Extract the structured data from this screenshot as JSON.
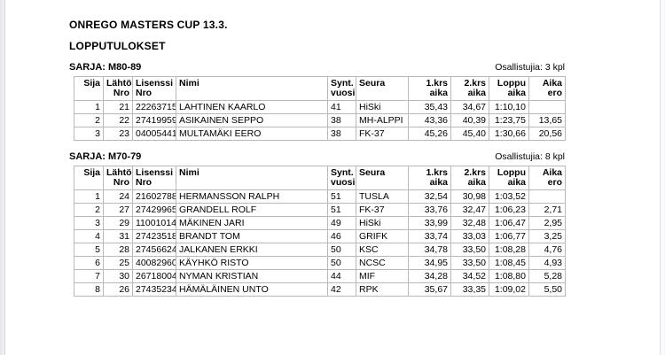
{
  "document": {
    "title": "ONREGO MASTERS CUP 13.3.",
    "subtitle": "LOPPUTULOKSET"
  },
  "columns": [
    {
      "id": "sija",
      "line1": "Sija",
      "line2": "",
      "align": "r"
    },
    {
      "id": "lahto-nro",
      "line1": "Lähtö",
      "line2": "Nro",
      "align": "r"
    },
    {
      "id": "lisenssi-nro",
      "line1": "Lisenssi",
      "line2": "Nro",
      "align": "l"
    },
    {
      "id": "nimi",
      "line1": "Nimi",
      "line2": "",
      "align": "l"
    },
    {
      "id": "synt-vuosi",
      "line1": "Synt.",
      "line2": "vuosi",
      "align": "l"
    },
    {
      "id": "seura",
      "line1": "Seura",
      "line2": "",
      "align": "l"
    },
    {
      "id": "1krs-aika",
      "line1": "1.krs",
      "line2": "aika",
      "align": "r"
    },
    {
      "id": "2krs-aika",
      "line1": "2.krs",
      "line2": "aika",
      "align": "r"
    },
    {
      "id": "loppu-aika",
      "line1": "Loppu",
      "line2": "aika",
      "align": "r"
    },
    {
      "id": "aika-ero",
      "line1": "Aika",
      "line2": "ero",
      "align": "r"
    }
  ],
  "sections": [
    {
      "heading": "SARJA: M80-89",
      "participants": "Osallistujia: 3 kpl",
      "rows": [
        [
          "1",
          "21",
          "22263715",
          "LAHTINEN KAARLO",
          "41",
          "HiSki",
          "35,43",
          "34,67",
          "1:10,10",
          ""
        ],
        [
          "2",
          "22",
          "27419959",
          "ASIKAINEN SEPPO",
          "38",
          "MH-ALPPI",
          "43,36",
          "40,39",
          "1:23,75",
          "13,65"
        ],
        [
          "3",
          "23",
          "04005441",
          "MULTAMÄKI EERO",
          "38",
          "FK-37",
          "45,26",
          "45,40",
          "1:30,66",
          "20,56"
        ]
      ]
    },
    {
      "heading": "SARJA: M70-79",
      "participants": "Osallistujia: 8 kpl",
      "rows": [
        [
          "1",
          "24",
          "21602788",
          "HERMANSSON RALPH",
          "51",
          "TUSLA",
          "32,54",
          "30,98",
          "1:03,52",
          ""
        ],
        [
          "2",
          "27",
          "27429965",
          "GRANDELL ROLF",
          "51",
          "FK-37",
          "33,76",
          "32,47",
          "1:06,23",
          "2,71"
        ],
        [
          "3",
          "29",
          "11001014",
          "MÄKINEN JARI",
          "49",
          "HiSki",
          "33,99",
          "32,48",
          "1:06,47",
          "2,95"
        ],
        [
          "4",
          "31",
          "27423518",
          "BRANDT TOM",
          "46",
          "GRIFK",
          "33,74",
          "33,03",
          "1:06,77",
          "3,25"
        ],
        [
          "5",
          "28",
          "27456624",
          "JALKANEN ERKKI",
          "50",
          "KSC",
          "34,78",
          "33,50",
          "1:08,28",
          "4,76"
        ],
        [
          "6",
          "25",
          "40082960",
          "KÄYHKÖ RISTO",
          "50",
          "NCSC",
          "34,95",
          "33,50",
          "1:08,45",
          "4,93"
        ],
        [
          "7",
          "30",
          "26718004",
          "NYMAN KRISTIAN",
          "44",
          "MIF",
          "34,28",
          "34,52",
          "1:08,80",
          "5,28"
        ],
        [
          "8",
          "26",
          "27435234",
          "HÄMÄLÄINEN UNTO",
          "42",
          "RPK",
          "35,67",
          "33,35",
          "1:09,02",
          "5,50"
        ]
      ]
    }
  ],
  "colors": {
    "table_border": "#b9b9b9",
    "page_background": "#ffffff",
    "edge_line": "#d2d2d8"
  }
}
